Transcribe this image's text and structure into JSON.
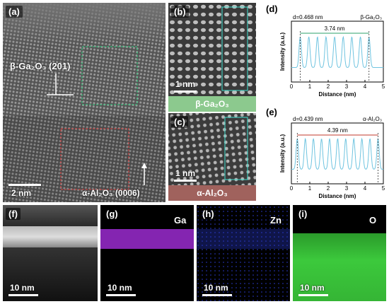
{
  "panel_a": {
    "tag": "(a)",
    "label_top": "β-Ga₂O₃ (201)",
    "label_bottom": "α-Al₂O₃ (0006)",
    "scalebar": "2 nm"
  },
  "panel_b": {
    "tag": "(b)",
    "scalebar": "1 nm",
    "material": "β-Ga₂O₃",
    "material_color": "#8cc98e"
  },
  "panel_c": {
    "tag": "(c)",
    "scalebar": "1 nm",
    "material": "α-Al₂O₃",
    "material_color": "#a0625d"
  },
  "panel_d": {
    "tag": "(d)",
    "d_label": "d=0.468 nm",
    "dist_label": "3.74 nm",
    "material": "β-Ga₂O₃",
    "accent": "#2ea36b"
  },
  "panel_e": {
    "tag": "(e)",
    "d_label": "d=0.439 nm",
    "dist_label": "4.39 nm",
    "material": "α-Al₂O₃",
    "accent": "#c0392b"
  },
  "panel_f": {
    "tag": "(f)",
    "scalebar": "10 nm"
  },
  "panel_g": {
    "tag": "(g)",
    "element": "Ga",
    "scalebar": "10 nm",
    "color": "#9b2bd0"
  },
  "panel_h": {
    "tag": "(h)",
    "element": "Zn",
    "scalebar": "10 nm",
    "color": "#2b3bd0"
  },
  "panel_i": {
    "tag": "(i)",
    "element": "O",
    "scalebar": "10 nm",
    "color": "#3cc93c"
  },
  "chart_data": [
    {
      "type": "line",
      "panel": "d",
      "xlabel": "Distance (nm)",
      "ylabel": "Intensity (a.u.)",
      "xlim": [
        0,
        5
      ],
      "xticks": [
        "0",
        "1",
        "2",
        "3",
        "4",
        "5"
      ],
      "peaks": 9,
      "peak_start": 0.48,
      "peak_end": 4.22,
      "annotations": [
        "d=0.468 nm",
        "3.74 nm",
        "β-Ga₂O₃"
      ]
    },
    {
      "type": "line",
      "panel": "e",
      "xlabel": "Distance (nm)",
      "ylabel": "Intensity (a.u.)",
      "xlim": [
        0,
        5
      ],
      "xticks": [
        "0",
        "1",
        "2",
        "3",
        "4",
        "5"
      ],
      "peaks": 11,
      "peak_start": 0.32,
      "peak_end": 4.71,
      "annotations": [
        "d=0.439 nm",
        "4.39 nm",
        "α-Al₂O₃"
      ]
    }
  ]
}
